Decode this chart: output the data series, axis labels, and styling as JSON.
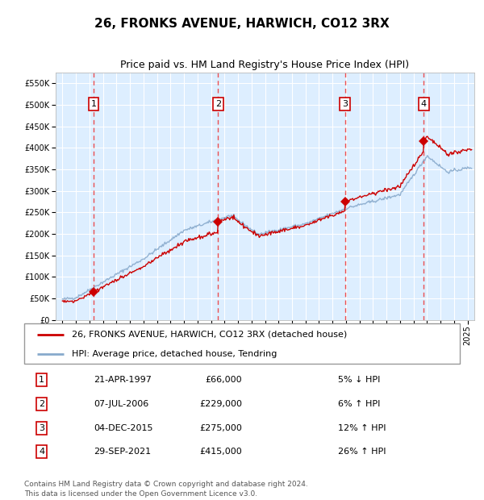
{
  "title": "26, FRONKS AVENUE, HARWICH, CO12 3RX",
  "subtitle": "Price paid vs. HM Land Registry's House Price Index (HPI)",
  "legend_line1": "26, FRONKS AVENUE, HARWICH, CO12 3RX (detached house)",
  "legend_line2": "HPI: Average price, detached house, Tendring",
  "footer1": "Contains HM Land Registry data © Crown copyright and database right 2024.",
  "footer2": "This data is licensed under the Open Government Licence v3.0.",
  "sales": [
    {
      "num": 1,
      "date_str": "21-APR-1997",
      "date_x": 1997.3,
      "price": 66000,
      "pct": "5%",
      "dir": "↓"
    },
    {
      "num": 2,
      "date_str": "07-JUL-2006",
      "date_x": 2006.52,
      "price": 229000,
      "pct": "6%",
      "dir": "↑"
    },
    {
      "num": 3,
      "date_str": "04-DEC-2015",
      "date_x": 2015.92,
      "price": 275000,
      "pct": "12%",
      "dir": "↑"
    },
    {
      "num": 4,
      "date_str": "29-SEP-2021",
      "date_x": 2021.75,
      "price": 415000,
      "pct": "26%",
      "dir": "↑"
    }
  ],
  "ylim": [
    0,
    575000
  ],
  "xlim": [
    1994.5,
    2025.5
  ],
  "yticks": [
    0,
    50000,
    100000,
    150000,
    200000,
    250000,
    300000,
    350000,
    400000,
    450000,
    500000,
    550000
  ],
  "xticks": [
    1995,
    1996,
    1997,
    1998,
    1999,
    2000,
    2001,
    2002,
    2003,
    2004,
    2005,
    2006,
    2007,
    2008,
    2009,
    2010,
    2011,
    2012,
    2013,
    2014,
    2015,
    2016,
    2017,
    2018,
    2019,
    2020,
    2021,
    2022,
    2023,
    2024,
    2025
  ],
  "property_color": "#cc0000",
  "hpi_color": "#88aacc",
  "vline_color": "#ee3333",
  "bg_color": "#ddeeff",
  "grid_color": "#ffffff",
  "box_bg": "#ffffff",
  "fig_bg": "#ffffff",
  "title_fontsize": 11,
  "subtitle_fontsize": 9,
  "tick_fontsize": 7,
  "legend_fontsize": 8,
  "table_fontsize": 8,
  "footer_fontsize": 6.5
}
